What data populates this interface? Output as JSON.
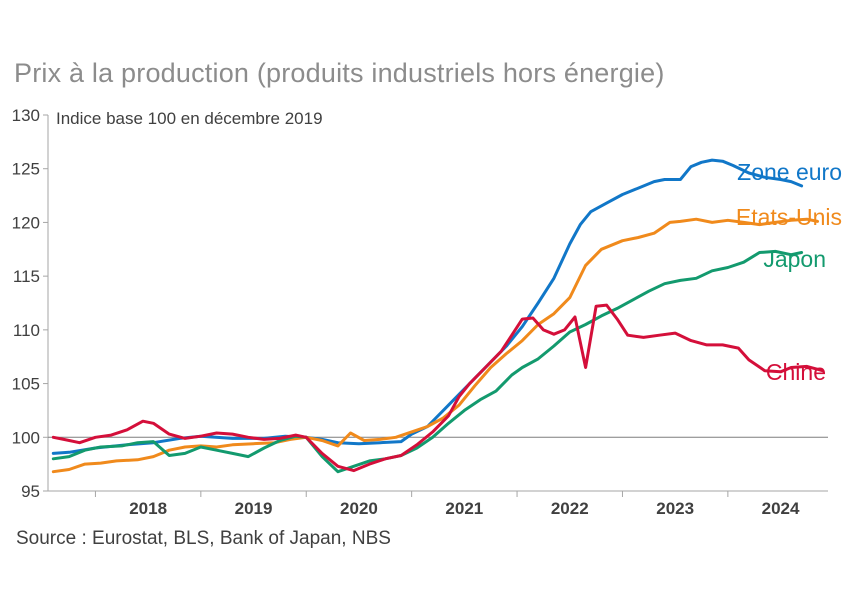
{
  "chart_data": {
    "type": "line",
    "title": "Prix à la production (produits industriels hors énergie)",
    "annotation": "Indice base 100 en décembre 2019",
    "source": "Source : Eurostat, BLS, Bank of Japan, NBS",
    "xlabel": "",
    "ylabel": "",
    "ylim": [
      95,
      130
    ],
    "yticks": [
      95,
      100,
      105,
      110,
      115,
      120,
      125,
      130
    ],
    "xlim": [
      2017.55,
      2024.95
    ],
    "xticks": [
      "2018",
      "2019",
      "2020",
      "2021",
      "2022",
      "2023",
      "2024"
    ],
    "reference_line": 100,
    "series": [
      {
        "name": "Zone euro",
        "color": "#1177c8",
        "points": [
          [
            2017.6,
            98.5
          ],
          [
            2017.75,
            98.6
          ],
          [
            2018.0,
            99.0
          ],
          [
            2018.3,
            99.3
          ],
          [
            2018.55,
            99.5
          ],
          [
            2018.8,
            99.9
          ],
          [
            2019.0,
            100.1
          ],
          [
            2019.3,
            99.9
          ],
          [
            2019.6,
            99.9
          ],
          [
            2019.8,
            100.1
          ],
          [
            2020.0,
            100.0
          ],
          [
            2020.15,
            99.8
          ],
          [
            2020.3,
            99.5
          ],
          [
            2020.5,
            99.4
          ],
          [
            2020.7,
            99.5
          ],
          [
            2020.9,
            99.6
          ],
          [
            2021.0,
            100.3
          ],
          [
            2021.15,
            101.0
          ],
          [
            2021.3,
            102.5
          ],
          [
            2021.45,
            104.0
          ],
          [
            2021.6,
            105.5
          ],
          [
            2021.75,
            107.0
          ],
          [
            2021.9,
            108.5
          ],
          [
            2022.05,
            110.3
          ],
          [
            2022.2,
            112.5
          ],
          [
            2022.35,
            114.8
          ],
          [
            2022.5,
            118.0
          ],
          [
            2022.6,
            119.8
          ],
          [
            2022.7,
            121.0
          ],
          [
            2022.85,
            121.8
          ],
          [
            2023.0,
            122.6
          ],
          [
            2023.15,
            123.2
          ],
          [
            2023.3,
            123.8
          ],
          [
            2023.4,
            124.0
          ],
          [
            2023.55,
            124.0
          ],
          [
            2023.65,
            125.2
          ],
          [
            2023.75,
            125.6
          ],
          [
            2023.85,
            125.8
          ],
          [
            2023.95,
            125.7
          ],
          [
            2024.05,
            125.3
          ],
          [
            2024.2,
            124.6
          ],
          [
            2024.35,
            124.2
          ],
          [
            2024.5,
            124.0
          ],
          [
            2024.6,
            123.8
          ],
          [
            2024.7,
            123.4
          ]
        ]
      },
      {
        "name": "Etats-Unis",
        "color": "#f08a1c",
        "points": [
          [
            2017.6,
            96.8
          ],
          [
            2017.75,
            97.0
          ],
          [
            2017.9,
            97.5
          ],
          [
            2018.05,
            97.6
          ],
          [
            2018.2,
            97.8
          ],
          [
            2018.4,
            97.9
          ],
          [
            2018.55,
            98.2
          ],
          [
            2018.7,
            98.8
          ],
          [
            2018.85,
            99.1
          ],
          [
            2019.0,
            99.2
          ],
          [
            2019.15,
            99.1
          ],
          [
            2019.3,
            99.3
          ],
          [
            2019.5,
            99.4
          ],
          [
            2019.7,
            99.5
          ],
          [
            2019.85,
            99.8
          ],
          [
            2020.0,
            100.0
          ],
          [
            2020.15,
            99.7
          ],
          [
            2020.3,
            99.2
          ],
          [
            2020.42,
            100.4
          ],
          [
            2020.55,
            99.7
          ],
          [
            2020.7,
            99.8
          ],
          [
            2020.85,
            100.0
          ],
          [
            2021.0,
            100.5
          ],
          [
            2021.15,
            101.0
          ],
          [
            2021.3,
            101.8
          ],
          [
            2021.45,
            103.0
          ],
          [
            2021.6,
            104.8
          ],
          [
            2021.75,
            106.5
          ],
          [
            2021.9,
            107.8
          ],
          [
            2022.05,
            109.0
          ],
          [
            2022.2,
            110.5
          ],
          [
            2022.35,
            111.5
          ],
          [
            2022.5,
            113.0
          ],
          [
            2022.65,
            116.0
          ],
          [
            2022.8,
            117.5
          ],
          [
            2023.0,
            118.3
          ],
          [
            2023.15,
            118.6
          ],
          [
            2023.3,
            119.0
          ],
          [
            2023.45,
            120.0
          ],
          [
            2023.55,
            120.1
          ],
          [
            2023.7,
            120.3
          ],
          [
            2023.85,
            120.0
          ],
          [
            2024.0,
            120.2
          ],
          [
            2024.15,
            120.0
          ],
          [
            2024.3,
            119.8
          ],
          [
            2024.45,
            120.0
          ],
          [
            2024.6,
            120.2
          ],
          [
            2024.75,
            120.3
          ],
          [
            2024.85,
            120.1
          ]
        ]
      },
      {
        "name": "Japon",
        "color": "#139a6e",
        "points": [
          [
            2017.6,
            98.0
          ],
          [
            2017.75,
            98.2
          ],
          [
            2017.9,
            98.8
          ],
          [
            2018.05,
            99.1
          ],
          [
            2018.25,
            99.2
          ],
          [
            2018.4,
            99.5
          ],
          [
            2018.55,
            99.6
          ],
          [
            2018.7,
            98.3
          ],
          [
            2018.85,
            98.5
          ],
          [
            2019.0,
            99.1
          ],
          [
            2019.15,
            98.8
          ],
          [
            2019.3,
            98.5
          ],
          [
            2019.45,
            98.2
          ],
          [
            2019.6,
            99.0
          ],
          [
            2019.75,
            99.7
          ],
          [
            2019.9,
            100.1
          ],
          [
            2020.0,
            100.0
          ],
          [
            2020.15,
            98.2
          ],
          [
            2020.3,
            96.8
          ],
          [
            2020.45,
            97.3
          ],
          [
            2020.6,
            97.8
          ],
          [
            2020.75,
            98.0
          ],
          [
            2020.9,
            98.3
          ],
          [
            2021.05,
            99.0
          ],
          [
            2021.2,
            100.0
          ],
          [
            2021.35,
            101.3
          ],
          [
            2021.5,
            102.5
          ],
          [
            2021.65,
            103.5
          ],
          [
            2021.8,
            104.3
          ],
          [
            2021.95,
            105.8
          ],
          [
            2022.05,
            106.5
          ],
          [
            2022.2,
            107.3
          ],
          [
            2022.35,
            108.5
          ],
          [
            2022.5,
            109.8
          ],
          [
            2022.65,
            110.5
          ],
          [
            2022.8,
            111.3
          ],
          [
            2022.95,
            112.0
          ],
          [
            2023.1,
            112.8
          ],
          [
            2023.25,
            113.6
          ],
          [
            2023.4,
            114.3
          ],
          [
            2023.55,
            114.6
          ],
          [
            2023.7,
            114.8
          ],
          [
            2023.85,
            115.5
          ],
          [
            2024.0,
            115.8
          ],
          [
            2024.15,
            116.3
          ],
          [
            2024.3,
            117.2
          ],
          [
            2024.45,
            117.3
          ],
          [
            2024.6,
            117.0
          ],
          [
            2024.7,
            117.2
          ]
        ]
      },
      {
        "name": "Chine",
        "color": "#d40f3a",
        "points": [
          [
            2017.6,
            100.0
          ],
          [
            2017.7,
            99.8
          ],
          [
            2017.85,
            99.5
          ],
          [
            2018.0,
            100.0
          ],
          [
            2018.15,
            100.2
          ],
          [
            2018.3,
            100.7
          ],
          [
            2018.45,
            101.5
          ],
          [
            2018.55,
            101.3
          ],
          [
            2018.7,
            100.3
          ],
          [
            2018.85,
            99.9
          ],
          [
            2019.0,
            100.1
          ],
          [
            2019.15,
            100.4
          ],
          [
            2019.3,
            100.3
          ],
          [
            2019.45,
            100.0
          ],
          [
            2019.6,
            99.8
          ],
          [
            2019.75,
            99.9
          ],
          [
            2019.9,
            100.2
          ],
          [
            2020.0,
            100.0
          ],
          [
            2020.15,
            98.5
          ],
          [
            2020.3,
            97.3
          ],
          [
            2020.45,
            96.9
          ],
          [
            2020.6,
            97.5
          ],
          [
            2020.75,
            98.0
          ],
          [
            2020.9,
            98.3
          ],
          [
            2021.05,
            99.3
          ],
          [
            2021.2,
            100.5
          ],
          [
            2021.35,
            102.0
          ],
          [
            2021.45,
            103.8
          ],
          [
            2021.55,
            105.0
          ],
          [
            2021.7,
            106.5
          ],
          [
            2021.85,
            108.0
          ],
          [
            2021.95,
            109.5
          ],
          [
            2022.05,
            111.0
          ],
          [
            2022.15,
            111.1
          ],
          [
            2022.25,
            110.0
          ],
          [
            2022.35,
            109.6
          ],
          [
            2022.45,
            110.0
          ],
          [
            2022.55,
            111.2
          ],
          [
            2022.65,
            106.5
          ],
          [
            2022.75,
            112.2
          ],
          [
            2022.85,
            112.3
          ],
          [
            2022.95,
            111.0
          ],
          [
            2023.05,
            109.5
          ],
          [
            2023.2,
            109.3
          ],
          [
            2023.35,
            109.5
          ],
          [
            2023.5,
            109.7
          ],
          [
            2023.65,
            109.0
          ],
          [
            2023.8,
            108.6
          ],
          [
            2023.95,
            108.6
          ],
          [
            2024.1,
            108.3
          ],
          [
            2024.2,
            107.2
          ],
          [
            2024.35,
            106.2
          ],
          [
            2024.5,
            106.1
          ],
          [
            2024.6,
            106.5
          ],
          [
            2024.75,
            106.6
          ],
          [
            2024.9,
            106.2
          ]
        ]
      }
    ]
  }
}
